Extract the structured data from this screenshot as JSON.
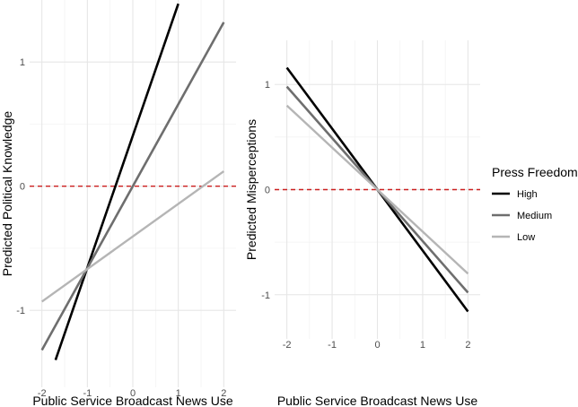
{
  "chart_data": [
    {
      "type": "line",
      "xlabel": "Public Service Broadcast News Use",
      "ylabel": "Predicted Political Knowledge",
      "xticks": [
        -2,
        -1,
        0,
        1,
        2
      ],
      "yticks": [
        -1,
        0,
        1
      ],
      "xlim": [
        -2.27,
        2.27
      ],
      "ylim": [
        -1.62,
        1.5
      ],
      "reference_line": {
        "y": 0,
        "style": "dashed",
        "color": "#cc1f1f"
      },
      "series": [
        {
          "name": "High",
          "color": "#000000",
          "x": [
            -1.7,
            1.0
          ],
          "y": [
            -1.4,
            1.47
          ]
        },
        {
          "name": "Medium",
          "color": "#6e6e6e",
          "x": [
            -2.0,
            2.0
          ],
          "y": [
            -1.32,
            1.32
          ]
        },
        {
          "name": "Low",
          "color": "#b5b5b5",
          "x": [
            -2.0,
            2.0
          ],
          "y": [
            -0.93,
            0.12
          ]
        }
      ]
    },
    {
      "type": "line",
      "xlabel": "Public Service Broadcast News Use",
      "ylabel": "Predicted Misperceptions",
      "xticks": [
        -2,
        -1,
        0,
        1,
        2
      ],
      "yticks": [
        -1,
        0,
        1
      ],
      "xlim": [
        -2.27,
        2.27
      ],
      "ylim": [
        -1.42,
        1.42
      ],
      "reference_line": {
        "y": 0,
        "style": "dashed",
        "color": "#cc1f1f"
      },
      "series": [
        {
          "name": "High",
          "color": "#000000",
          "x": [
            -2.0,
            2.0
          ],
          "y": [
            1.16,
            -1.16
          ]
        },
        {
          "name": "Medium",
          "color": "#6e6e6e",
          "x": [
            -2.0,
            2.0
          ],
          "y": [
            0.98,
            -0.98
          ]
        },
        {
          "name": "Low",
          "color": "#b5b5b5",
          "x": [
            -2.0,
            2.0
          ],
          "y": [
            0.8,
            -0.8
          ]
        }
      ]
    }
  ],
  "legend": {
    "title": "Press Freedom",
    "placement": "right",
    "entries": [
      {
        "label": "High",
        "color": "#000000"
      },
      {
        "label": "Medium",
        "color": "#6e6e6e"
      },
      {
        "label": "Low",
        "color": "#b5b5b5"
      }
    ]
  }
}
